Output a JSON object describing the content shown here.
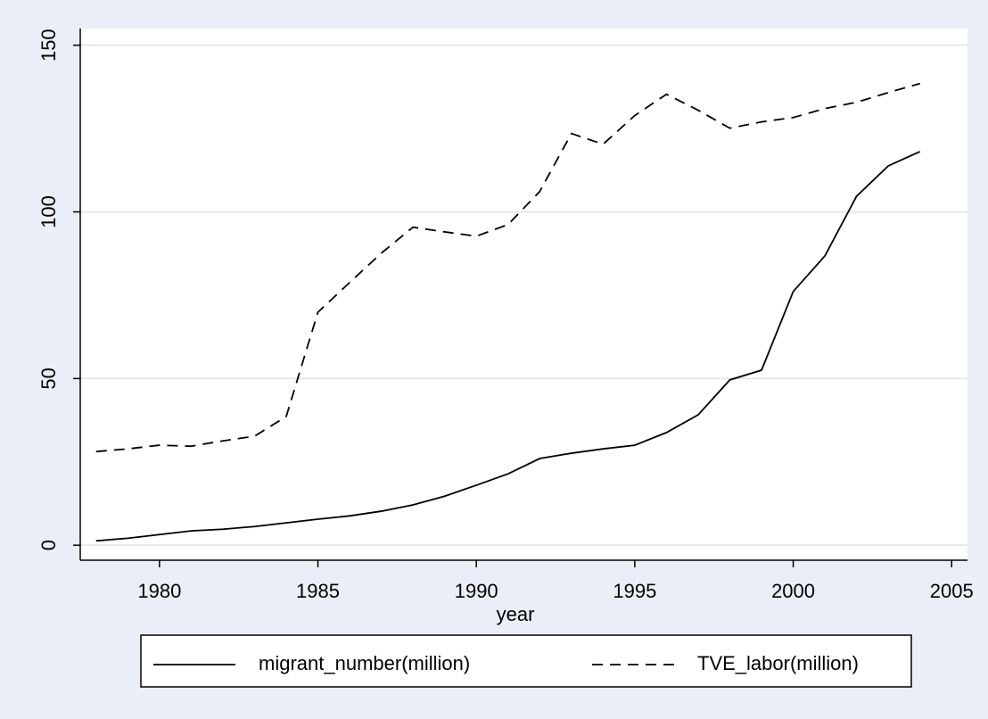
{
  "chart_data": {
    "type": "line",
    "x_label": "year",
    "x": [
      1978,
      1979,
      1980,
      1981,
      1982,
      1983,
      1984,
      1985,
      1986,
      1987,
      1988,
      1989,
      1990,
      1991,
      1992,
      1993,
      1994,
      1995,
      1996,
      1997,
      1998,
      1999,
      2000,
      2001,
      2002,
      2003,
      2004
    ],
    "series": [
      {
        "name": "migrant_number(million)",
        "color": "#000000",
        "dash": "solid",
        "values": [
          1.3,
          2.1,
          3.2,
          4.3,
          4.8,
          5.6,
          6.7,
          7.8,
          8.8,
          10.2,
          12.1,
          14.7,
          18,
          21.4,
          26,
          27.6,
          28.9,
          30,
          33.8,
          39.1,
          49.6,
          52.5,
          76.1,
          86.8,
          104.7,
          113.8,
          118.1
        ]
      },
      {
        "name": "TVE_labor(million)",
        "color": "#000000",
        "dash": "dashed",
        "values": [
          28.1,
          28.9,
          30,
          29.7,
          31.3,
          32.7,
          38.6,
          69.9,
          78.8,
          87.6,
          95.4,
          94,
          92.7,
          96.2,
          106.1,
          123.5,
          120.3,
          128.9,
          135.3,
          130.5,
          125.1,
          127,
          128.3,
          131,
          132.9,
          135.8,
          138.5
        ]
      }
    ],
    "xlim": [
      1977.5,
      2005.5
    ],
    "xticks": [
      1980,
      1985,
      1990,
      1995,
      2000,
      2005
    ],
    "ylim": [
      -4.5,
      155
    ],
    "yticks": [
      0,
      50,
      100,
      150
    ],
    "grid": true,
    "legend": "bottom"
  }
}
